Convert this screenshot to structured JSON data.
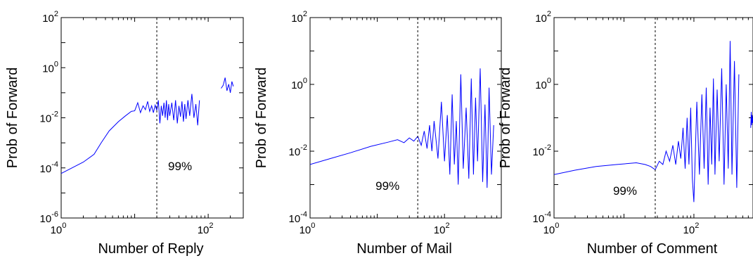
{
  "chart_data": [
    {
      "type": "line",
      "xlabel": "Number of Reply",
      "ylabel": "Prob of Forward",
      "xscale": "log",
      "yscale": "log",
      "xlim": [
        1,
        300
      ],
      "ylim": [
        1e-06,
        100
      ],
      "xticks": [
        {
          "value": 1,
          "base": "10",
          "exp": "0"
        },
        {
          "value": 100,
          "base": "10",
          "exp": "2"
        }
      ],
      "yticks": [
        {
          "value": 100,
          "base": "10",
          "exp": "2"
        },
        {
          "value": 1,
          "base": "10",
          "exp": "0"
        },
        {
          "value": 0.01,
          "base": "10",
          "exp": "-2"
        },
        {
          "value": 0.0001,
          "base": "10",
          "exp": "-4"
        },
        {
          "value": 1e-06,
          "base": "10",
          "exp": "-6"
        }
      ],
      "threshold": {
        "x": 20,
        "label": "99%",
        "label_y": 8e-05
      },
      "color": "#0000ff",
      "segments": [
        {
          "x": [
            1,
            1.4,
            2,
            2.8,
            3.5,
            4.5,
            6,
            7.5,
            9,
            10,
            11,
            12,
            13,
            14,
            15,
            16,
            17,
            18,
            19,
            20,
            21,
            22,
            23,
            24,
            25,
            26,
            27,
            28,
            29,
            30,
            32,
            34,
            36,
            38,
            40,
            42,
            44,
            46,
            48,
            50,
            53,
            56,
            60,
            64,
            68,
            72,
            76
          ],
          "y": [
            6e-05,
            0.0001,
            0.00017,
            0.00035,
            0.001,
            0.003,
            0.007,
            0.012,
            0.018,
            0.019,
            0.04,
            0.016,
            0.03,
            0.021,
            0.045,
            0.018,
            0.03,
            0.016,
            0.032,
            0.02,
            0.05,
            0.006,
            0.03,
            0.012,
            0.04,
            0.01,
            0.05,
            0.008,
            0.035,
            0.012,
            0.04,
            0.008,
            0.05,
            0.006,
            0.03,
            0.011,
            0.045,
            0.007,
            0.035,
            0.009,
            0.05,
            0.012,
            0.09,
            0.01,
            0.035,
            0.005,
            0.05
          ]
        },
        {
          "x": [
            150,
            160,
            170,
            180,
            190,
            200,
            210,
            220
          ],
          "y": [
            0.15,
            0.2,
            0.4,
            0.12,
            0.22,
            0.1,
            0.28,
            0.18
          ]
        }
      ]
    },
    {
      "type": "line",
      "xlabel": "Number of Mail",
      "ylabel": "Prob of Forward",
      "xscale": "log",
      "yscale": "log",
      "xlim": [
        1,
        700
      ],
      "ylim": [
        0.0001,
        100
      ],
      "xticks": [
        {
          "value": 1,
          "base": "10",
          "exp": "0"
        },
        {
          "value": 100,
          "base": "10",
          "exp": "2"
        }
      ],
      "yticks": [
        {
          "value": 100,
          "base": "10",
          "exp": "2"
        },
        {
          "value": 1,
          "base": "10",
          "exp": "0"
        },
        {
          "value": 0.01,
          "base": "10",
          "exp": "-2"
        },
        {
          "value": 0.0001,
          "base": "10",
          "exp": "-4"
        }
      ],
      "threshold": {
        "x": 40,
        "label": "99%",
        "label_y": 0.0007
      },
      "color": "#0000ff",
      "segments": [
        {
          "x": [
            1,
            2,
            4,
            8,
            15,
            20,
            25,
            30,
            35,
            40,
            45,
            50,
            55,
            60,
            65,
            70,
            80,
            90,
            100,
            110,
            120,
            130,
            140,
            150,
            160,
            175,
            190,
            210,
            230,
            250,
            270,
            290,
            310,
            340,
            370,
            400,
            430,
            460,
            500,
            540
          ],
          "y": [
            0.004,
            0.006,
            0.009,
            0.014,
            0.019,
            0.022,
            0.018,
            0.025,
            0.02,
            0.028,
            0.015,
            0.04,
            0.012,
            0.06,
            0.01,
            0.08,
            0.006,
            0.3,
            0.005,
            0.12,
            0.002,
            0.5,
            0.004,
            0.08,
            0.001,
            2,
            0.003,
            0.2,
            0.0015,
            1.5,
            0.002,
            0.4,
            0.005,
            3,
            0.0012,
            0.25,
            0.0008,
            0.8,
            0.002,
            0.06
          ]
        }
      ]
    },
    {
      "type": "line",
      "xlabel": "Number of Comment",
      "ylabel": "Prob of Forward",
      "xscale": "log",
      "yscale": "log",
      "xlim": [
        1,
        700
      ],
      "ylim": [
        0.0001,
        100
      ],
      "xticks": [
        {
          "value": 1,
          "base": "10",
          "exp": "0"
        },
        {
          "value": 100,
          "base": "10",
          "exp": "2"
        }
      ],
      "yticks": [
        {
          "value": 100,
          "base": "10",
          "exp": "2"
        },
        {
          "value": 1,
          "base": "10",
          "exp": "0"
        },
        {
          "value": 0.01,
          "base": "10",
          "exp": "-2"
        },
        {
          "value": 0.0001,
          "base": "10",
          "exp": "-4"
        }
      ],
      "threshold": {
        "x": 28,
        "label": "99%",
        "label_y": 0.0005
      },
      "color": "#0000ff",
      "segments": [
        {
          "x": [
            1,
            2,
            4,
            8,
            15,
            20,
            24,
            28,
            32,
            36,
            40,
            45,
            50,
            55,
            60,
            65,
            70,
            75,
            80,
            85,
            90,
            95,
            100,
            110,
            120,
            130,
            140,
            150,
            160,
            170,
            180,
            190,
            200,
            215,
            230,
            250,
            270,
            290,
            310,
            330,
            350,
            380,
            410,
            440
          ],
          "y": [
            0.002,
            0.0027,
            0.0035,
            0.004,
            0.0045,
            0.004,
            0.0035,
            0.0028,
            0.005,
            0.004,
            0.01,
            0.005,
            0.015,
            0.004,
            0.02,
            0.006,
            0.05,
            0.003,
            0.1,
            0.004,
            0.2,
            0.0015,
            0.0003,
            0.3,
            0.002,
            0.5,
            0.003,
            0.8,
            0.001,
            0.2,
            0.004,
            1.5,
            0.002,
            0.7,
            0.005,
            3,
            0.001,
            1,
            0.003,
            20,
            0.002,
            5,
            0.0008,
            2
          ]
        },
        {
          "x": [
            650,
            660,
            670,
            680,
            690,
            700
          ],
          "y": [
            0.05,
            0.15,
            0.06,
            0.12,
            0.07,
            0.1
          ]
        }
      ]
    }
  ]
}
